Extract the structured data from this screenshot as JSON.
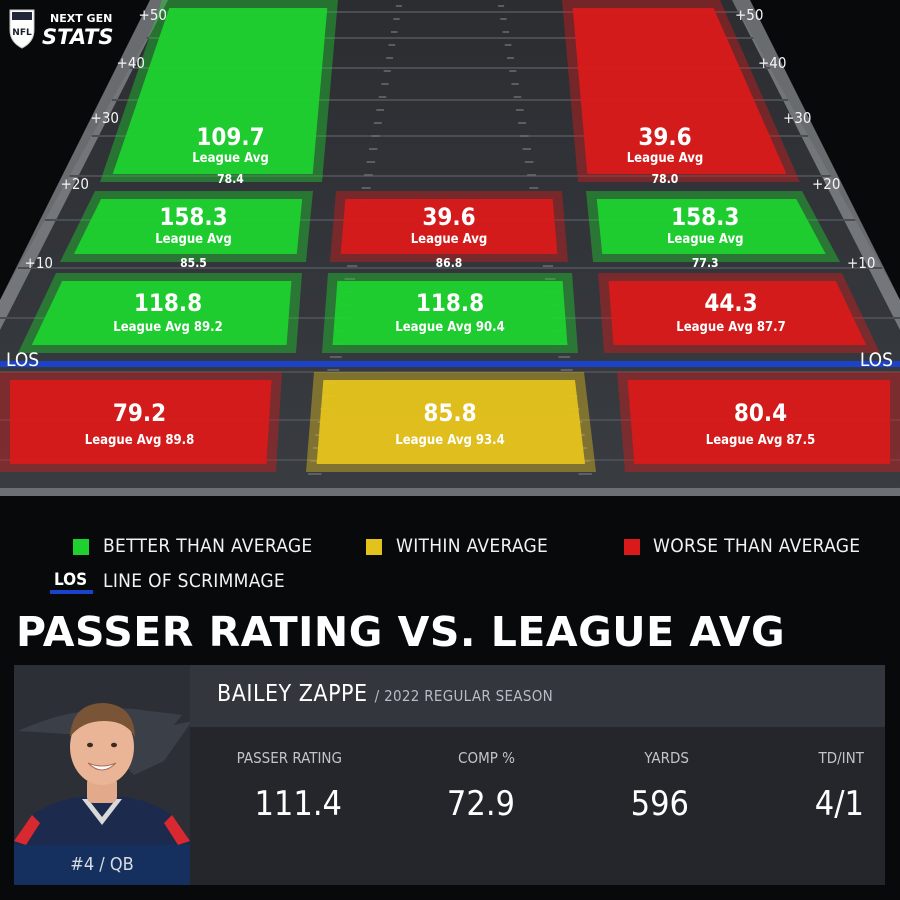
{
  "brand": {
    "line1": "NEXT GEN",
    "line2": "STATS",
    "badge": "NFL"
  },
  "colors": {
    "better": "#1fd12f",
    "within": "#e4c21c",
    "worse": "#d81a1a",
    "los": "#1b43c9"
  },
  "field": {
    "yard_marks": [
      "+50",
      "+40",
      "+30",
      "+20",
      "+10"
    ],
    "los_label": "LOS",
    "zones": [
      {
        "id": "deep-left",
        "status": "better",
        "rating": "109.7",
        "avg_label": "League Avg",
        "avg_value": "78.4"
      },
      {
        "id": "deep-right",
        "status": "worse",
        "rating": "39.6",
        "avg_label": "League Avg",
        "avg_value": "78.0"
      },
      {
        "id": "mid-left",
        "status": "better",
        "rating": "158.3",
        "avg_label": "League Avg",
        "avg_value": "85.5"
      },
      {
        "id": "mid-middle",
        "status": "worse",
        "rating": "39.6",
        "avg_label": "League Avg",
        "avg_value": "86.8"
      },
      {
        "id": "mid-right",
        "status": "better",
        "rating": "158.3",
        "avg_label": "League Avg",
        "avg_value": "77.3"
      },
      {
        "id": "short-left",
        "status": "better",
        "rating": "118.8",
        "avg_label": "League Avg 89.2"
      },
      {
        "id": "short-middle",
        "status": "better",
        "rating": "118.8",
        "avg_label": "League Avg 90.4"
      },
      {
        "id": "short-right",
        "status": "worse",
        "rating": "44.3",
        "avg_label": "League Avg 87.7"
      },
      {
        "id": "behind-left",
        "status": "worse",
        "rating": "79.2",
        "avg_label": "League Avg 89.8"
      },
      {
        "id": "behind-middle",
        "status": "within",
        "rating": "85.8",
        "avg_label": "League Avg 93.4"
      },
      {
        "id": "behind-right",
        "status": "worse",
        "rating": "80.4",
        "avg_label": "League Avg 87.5"
      }
    ]
  },
  "legend": {
    "better": "BETTER THAN AVERAGE",
    "within": "WITHIN AVERAGE",
    "worse": "WORSE THAN AVERAGE",
    "los_tag": "LOS",
    "los_text": "LINE OF SCRIMMAGE"
  },
  "title": "PASSER RATING VS. LEAGUE AVG",
  "player": {
    "name": "BAILEY ZAPPE",
    "season": "/ 2022 REGULAR SEASON",
    "jersey": "#4 / QB",
    "stats": [
      {
        "label": "PASSER RATING",
        "value": "111.4"
      },
      {
        "label": "COMP %",
        "value": "72.9"
      },
      {
        "label": "YARDS",
        "value": "596"
      },
      {
        "label": "TD/INT",
        "value": "4/1"
      }
    ]
  }
}
